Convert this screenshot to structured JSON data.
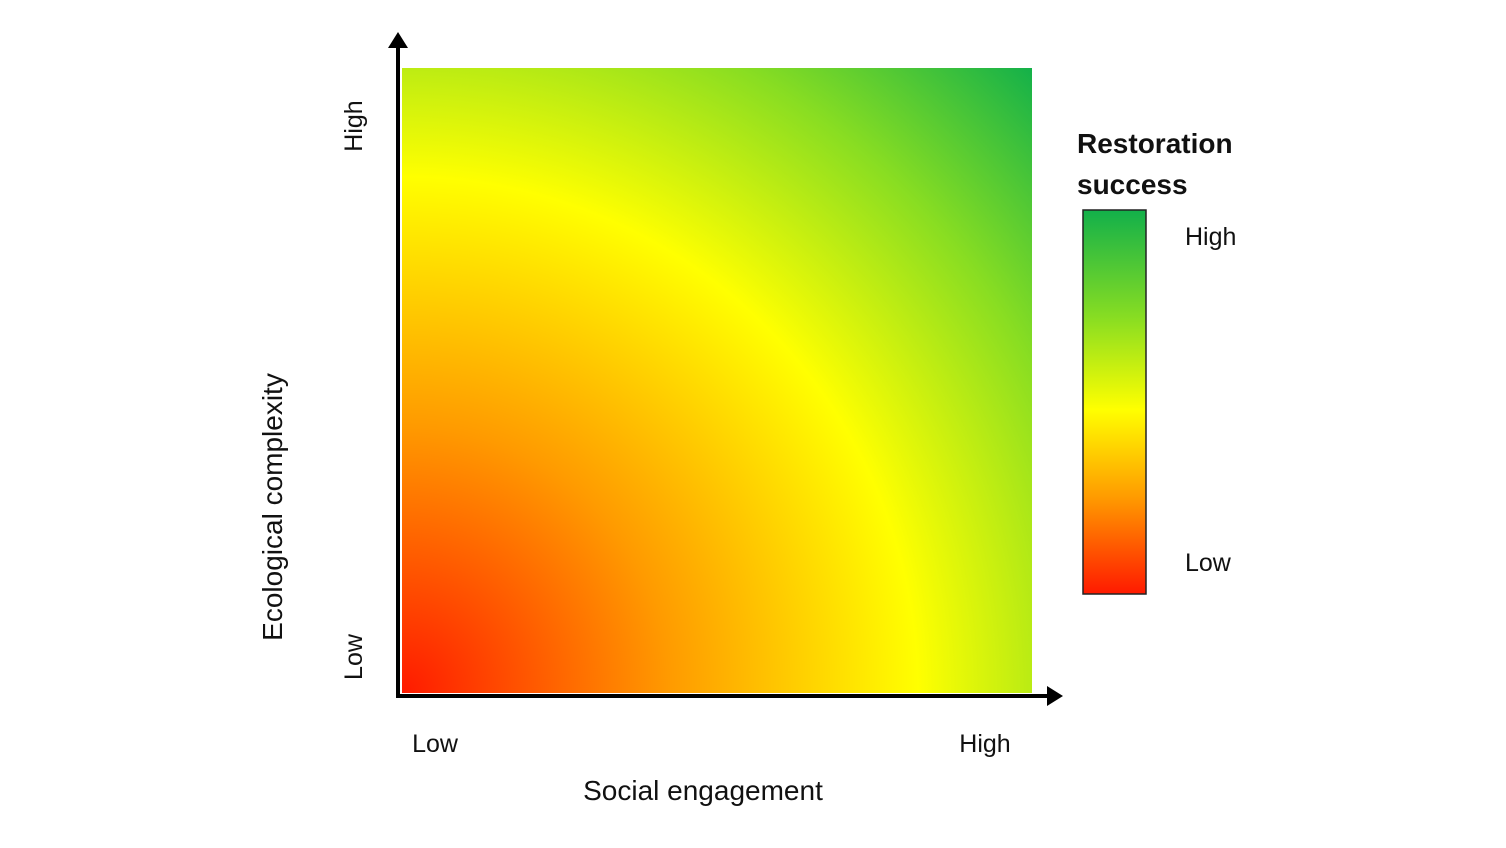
{
  "diagram": {
    "x_axis": {
      "title": "Social engagement",
      "low_label": "Low",
      "high_label": "High"
    },
    "y_axis": {
      "title": "Ecological complexity",
      "low_label": "Low",
      "high_label": "High"
    },
    "legend": {
      "title_line1": "Restoration",
      "title_line2": "success",
      "high_label": "High",
      "low_label": "Low"
    },
    "colors": {
      "low": "#ff1a00",
      "mid_low": "#ff9a00",
      "mid": "#ffff00",
      "mid_high": "#88dd22",
      "high": "#12b04a",
      "axis": "#000000"
    }
  }
}
